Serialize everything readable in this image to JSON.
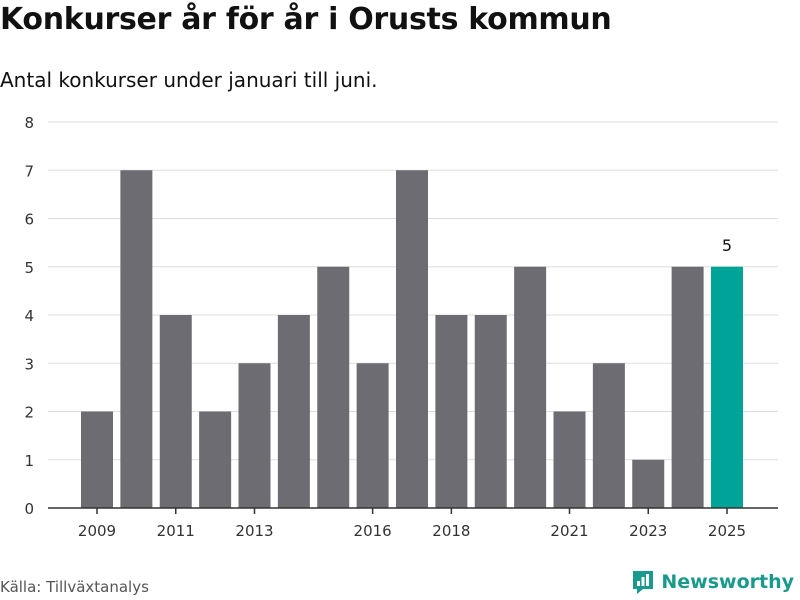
{
  "header": {
    "title": "Konkurser år för år i Orusts kommun",
    "subtitle": "Antal konkurser under januari till juni."
  },
  "footer": {
    "source": "Källa: Tillväxtanalys",
    "brand": "Newsworthy",
    "brand_icon": "chart-logo-icon"
  },
  "colors": {
    "bar": "#6d6c73",
    "highlight": "#00a398",
    "grid": "#dddddd",
    "axis": "#333333",
    "brand": "#1a9a8c"
  },
  "chart_data": {
    "type": "bar",
    "categories": [
      "2009",
      "2010",
      "2011",
      "2012",
      "2013",
      "2014",
      "2015",
      "2016",
      "2017",
      "2018",
      "2019",
      "2020",
      "2021",
      "2022",
      "2023",
      "2024",
      "2025"
    ],
    "values": [
      2,
      7,
      4,
      2,
      3,
      4,
      5,
      3,
      7,
      4,
      4,
      5,
      2,
      3,
      1,
      5,
      5
    ],
    "x_tick_labels": [
      "2009",
      "2011",
      "2013",
      "2016",
      "2018",
      "2021",
      "2023",
      "2025"
    ],
    "y_ticks": [
      0,
      1,
      2,
      3,
      4,
      5,
      6,
      7,
      8
    ],
    "ylim": [
      0,
      8
    ],
    "highlight_category": "2025",
    "data_labels": [
      {
        "category": "2025",
        "label": "5"
      }
    ],
    "grid": true,
    "xlabel": "",
    "ylabel": ""
  }
}
